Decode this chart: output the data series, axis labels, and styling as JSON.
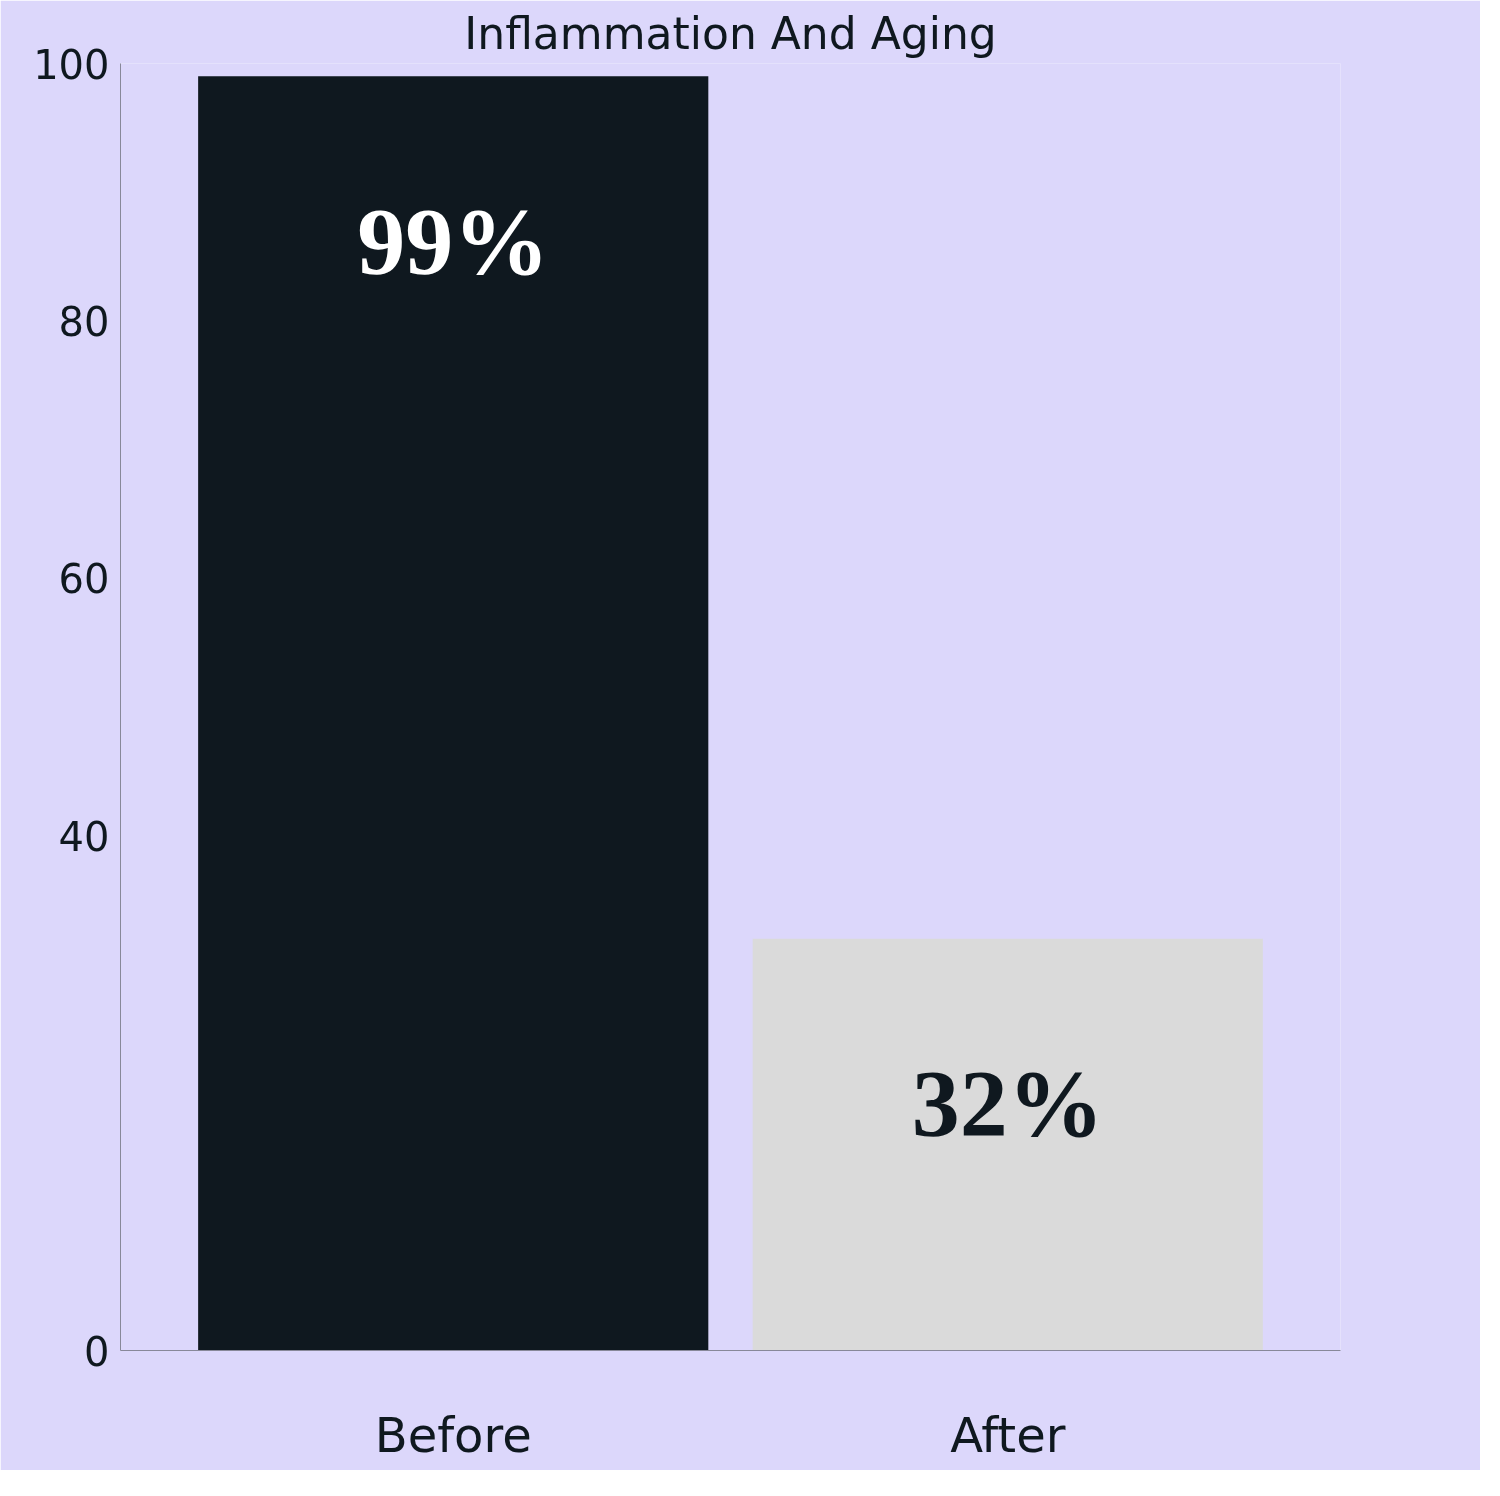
{
  "chart_data": {
    "type": "bar",
    "title": "Inflammation And Aging",
    "categories": [
      "Before",
      "After"
    ],
    "values": [
      99,
      32
    ],
    "colors": [
      "#0f181f",
      "#dadada"
    ],
    "value_labels": [
      "99%",
      "32%"
    ],
    "ylim": [
      0,
      100
    ],
    "yticks": [
      0,
      40,
      60,
      80,
      100
    ],
    "grid": false
  }
}
